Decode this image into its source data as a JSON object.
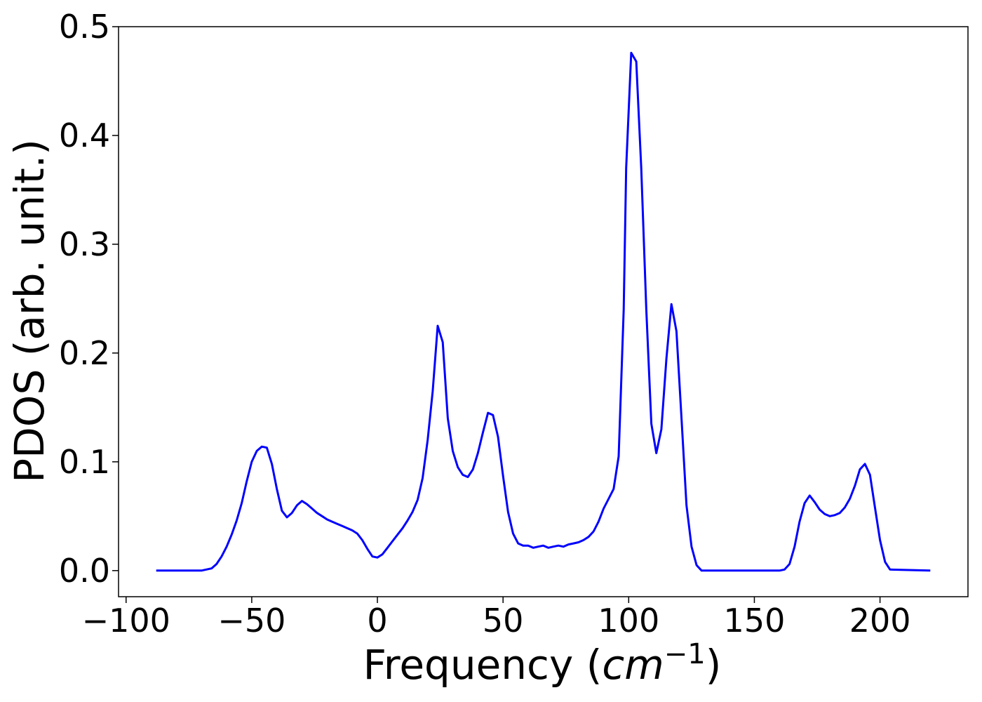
{
  "chart_data": {
    "type": "line",
    "title": "",
    "xlabel": {
      "prefix": "Frequency (",
      "var": "cm",
      "sup": "−1",
      "suffix": ")"
    },
    "ylabel": "PDOS (arb. unit.)",
    "xlim": [
      -103,
      235
    ],
    "ylim": [
      -0.024,
      0.5
    ],
    "x_ticks": [
      -100,
      -50,
      0,
      50,
      100,
      150,
      200
    ],
    "x_tick_labels": [
      "−100",
      "−50",
      "0",
      "50",
      "100",
      "150",
      "200"
    ],
    "y_ticks": [
      0.0,
      0.1,
      0.2,
      0.3,
      0.4,
      0.5
    ],
    "y_tick_labels": [
      "0.0",
      "0.1",
      "0.2",
      "0.3",
      "0.4",
      "0.5"
    ],
    "grid": false,
    "legend": "none",
    "series": [
      {
        "color": "#0000ff",
        "x": [
          -88,
          -70,
          -66,
          -64,
          -62,
          -60,
          -58,
          -56,
          -54,
          -52,
          -50,
          -48,
          -46,
          -44,
          -42,
          -40,
          -38,
          -36,
          -34,
          -32,
          -30,
          -28,
          -26,
          -24,
          -22,
          -20,
          -18,
          -16,
          -14,
          -12,
          -10,
          -8,
          -6,
          -4,
          -2,
          0,
          2,
          4,
          6,
          8,
          10,
          12,
          14,
          16,
          18,
          20,
          22,
          24,
          26,
          28,
          30,
          32,
          34,
          36,
          38,
          40,
          42,
          44,
          46,
          48,
          50,
          52,
          54,
          56,
          58,
          60,
          62,
          64,
          66,
          68,
          70,
          72,
          74,
          76,
          78,
          80,
          82,
          84,
          86,
          88,
          90,
          92,
          94,
          96,
          98,
          99,
          101,
          103,
          105,
          107,
          109,
          111,
          113,
          115,
          117,
          119,
          121,
          123,
          125,
          127,
          129,
          135,
          160,
          162,
          164,
          166,
          168,
          170,
          172,
          174,
          176,
          178,
          180,
          182,
          184,
          186,
          188,
          190,
          192,
          194,
          196,
          198,
          200,
          202,
          204,
          220
        ],
        "y": [
          0.0,
          0.0,
          0.002,
          0.006,
          0.013,
          0.022,
          0.033,
          0.046,
          0.062,
          0.082,
          0.1,
          0.11,
          0.114,
          0.113,
          0.098,
          0.075,
          0.055,
          0.049,
          0.053,
          0.06,
          0.064,
          0.061,
          0.057,
          0.053,
          0.05,
          0.047,
          0.045,
          0.043,
          0.041,
          0.039,
          0.037,
          0.034,
          0.028,
          0.02,
          0.013,
          0.012,
          0.015,
          0.021,
          0.027,
          0.033,
          0.039,
          0.046,
          0.054,
          0.065,
          0.085,
          0.12,
          0.165,
          0.225,
          0.21,
          0.14,
          0.11,
          0.095,
          0.088,
          0.086,
          0.093,
          0.108,
          0.127,
          0.145,
          0.143,
          0.123,
          0.087,
          0.054,
          0.034,
          0.025,
          0.023,
          0.023,
          0.021,
          0.022,
          0.023,
          0.021,
          0.022,
          0.023,
          0.022,
          0.024,
          0.025,
          0.026,
          0.028,
          0.031,
          0.036,
          0.045,
          0.057,
          0.066,
          0.075,
          0.105,
          0.24,
          0.37,
          0.476,
          0.468,
          0.37,
          0.24,
          0.135,
          0.108,
          0.13,
          0.195,
          0.245,
          0.22,
          0.14,
          0.06,
          0.022,
          0.005,
          0.0,
          0.0,
          0.0,
          0.001,
          0.006,
          0.022,
          0.045,
          0.062,
          0.069,
          0.063,
          0.056,
          0.052,
          0.05,
          0.051,
          0.053,
          0.058,
          0.066,
          0.078,
          0.093,
          0.098,
          0.088,
          0.058,
          0.028,
          0.008,
          0.001,
          0.0
        ]
      }
    ]
  }
}
